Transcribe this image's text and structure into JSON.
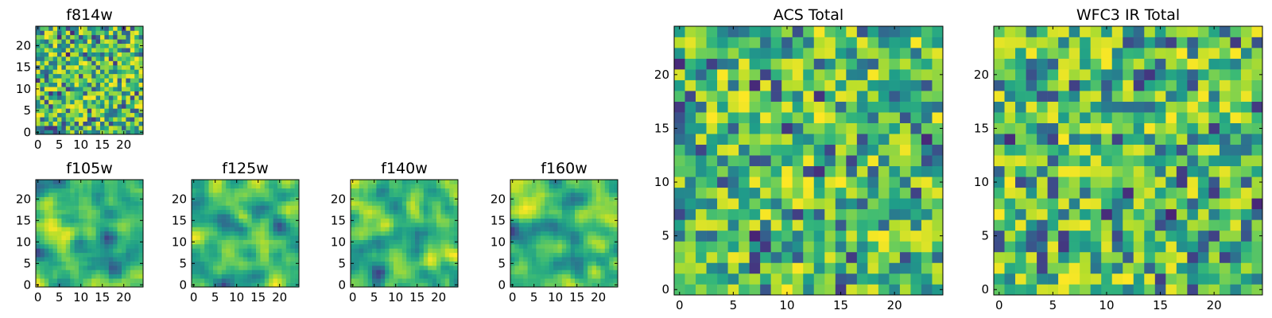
{
  "chart_data": [
    {
      "type": "heatmap",
      "title": "f814w",
      "colormap": "viridis",
      "x_ticks": [
        "0",
        "5",
        "10",
        "15",
        "20"
      ],
      "y_ticks": [
        "0",
        "5",
        "10",
        "15",
        "20"
      ],
      "xlim": [
        -0.5,
        24.5
      ],
      "ylim": [
        -0.5,
        24.5
      ],
      "grid_size": 25,
      "pixel_texture": "fine"
    },
    {
      "type": "heatmap",
      "title": "f105w",
      "colormap": "viridis",
      "x_ticks": [
        "0",
        "5",
        "10",
        "15",
        "20"
      ],
      "y_ticks": [
        "0",
        "5",
        "10",
        "15",
        "20"
      ],
      "xlim": [
        -0.5,
        24.5
      ],
      "ylim": [
        -0.5,
        24.5
      ],
      "grid_size": 25,
      "pixel_texture": "smooth"
    },
    {
      "type": "heatmap",
      "title": "f125w",
      "colormap": "viridis",
      "x_ticks": [
        "0",
        "5",
        "10",
        "15",
        "20"
      ],
      "y_ticks": [
        "0",
        "5",
        "10",
        "15",
        "20"
      ],
      "xlim": [
        -0.5,
        24.5
      ],
      "ylim": [
        -0.5,
        24.5
      ],
      "grid_size": 25,
      "pixel_texture": "smooth"
    },
    {
      "type": "heatmap",
      "title": "f140w",
      "colormap": "viridis",
      "x_ticks": [
        "0",
        "5",
        "10",
        "15",
        "20"
      ],
      "y_ticks": [
        "0",
        "5",
        "10",
        "15",
        "20"
      ],
      "xlim": [
        -0.5,
        24.5
      ],
      "ylim": [
        -0.5,
        24.5
      ],
      "grid_size": 25,
      "pixel_texture": "smooth"
    },
    {
      "type": "heatmap",
      "title": "f160w",
      "colormap": "viridis",
      "x_ticks": [
        "0",
        "5",
        "10",
        "15",
        "20"
      ],
      "y_ticks": [
        "0",
        "5",
        "10",
        "15",
        "20"
      ],
      "xlim": [
        -0.5,
        24.5
      ],
      "ylim": [
        -0.5,
        24.5
      ],
      "grid_size": 25,
      "pixel_texture": "smooth"
    },
    {
      "type": "heatmap",
      "title": "ACS Total",
      "colormap": "viridis",
      "x_ticks": [
        "0",
        "5",
        "10",
        "15",
        "20"
      ],
      "y_ticks": [
        "0",
        "5",
        "10",
        "15",
        "20"
      ],
      "xlim": [
        -0.5,
        24.5
      ],
      "ylim": [
        -0.5,
        24.5
      ],
      "grid_size": 25,
      "pixel_texture": "coarse"
    },
    {
      "type": "heatmap",
      "title": "WFC3 IR Total",
      "colormap": "viridis",
      "x_ticks": [
        "0",
        "5",
        "10",
        "15",
        "20"
      ],
      "y_ticks": [
        "0",
        "5",
        "10",
        "15",
        "20"
      ],
      "xlim": [
        -0.5,
        24.5
      ],
      "ylim": [
        -0.5,
        24.5
      ],
      "grid_size": 25,
      "pixel_texture": "coarse"
    }
  ]
}
